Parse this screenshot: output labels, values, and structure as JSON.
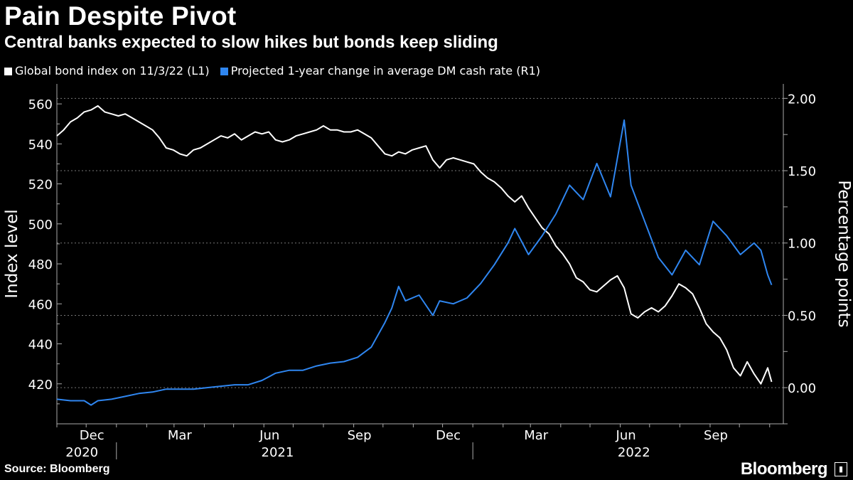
{
  "header": {
    "title": "Pain Despite Pivot",
    "subtitle": "Central banks expected to slow hikes but bonds keep sliding"
  },
  "footer": {
    "source": "Source: Bloomberg",
    "brand": "Bloomberg"
  },
  "chart_data": {
    "type": "line",
    "grid": true,
    "legend_position": "top-left",
    "series": [
      {
        "name": "Global bond index on 11/3/22 (L1)",
        "axis": "left",
        "color": "#ffffff",
        "points": [
          [
            "2020-11-01",
            544
          ],
          [
            "2020-11-08",
            547
          ],
          [
            "2020-11-15",
            551
          ],
          [
            "2020-11-22",
            553
          ],
          [
            "2020-11-29",
            556
          ],
          [
            "2020-12-06",
            557
          ],
          [
            "2020-12-13",
            559
          ],
          [
            "2020-12-20",
            556
          ],
          [
            "2020-12-27",
            555
          ],
          [
            "2021-01-03",
            554
          ],
          [
            "2021-01-10",
            555
          ],
          [
            "2021-01-17",
            553
          ],
          [
            "2021-01-24",
            551
          ],
          [
            "2021-01-31",
            549
          ],
          [
            "2021-02-07",
            547
          ],
          [
            "2021-02-14",
            543
          ],
          [
            "2021-02-21",
            538
          ],
          [
            "2021-02-28",
            537
          ],
          [
            "2021-03-07",
            535
          ],
          [
            "2021-03-14",
            534
          ],
          [
            "2021-03-21",
            537
          ],
          [
            "2021-03-28",
            538
          ],
          [
            "2021-04-04",
            540
          ],
          [
            "2021-04-11",
            542
          ],
          [
            "2021-04-18",
            544
          ],
          [
            "2021-04-25",
            543
          ],
          [
            "2021-05-02",
            545
          ],
          [
            "2021-05-09",
            542
          ],
          [
            "2021-05-16",
            544
          ],
          [
            "2021-05-23",
            546
          ],
          [
            "2021-05-30",
            545
          ],
          [
            "2021-06-06",
            546
          ],
          [
            "2021-06-13",
            542
          ],
          [
            "2021-06-20",
            541
          ],
          [
            "2021-06-27",
            542
          ],
          [
            "2021-07-04",
            544
          ],
          [
            "2021-07-11",
            545
          ],
          [
            "2021-07-18",
            546
          ],
          [
            "2021-07-25",
            547
          ],
          [
            "2021-08-01",
            549
          ],
          [
            "2021-08-08",
            547
          ],
          [
            "2021-08-15",
            547
          ],
          [
            "2021-08-22",
            546
          ],
          [
            "2021-08-29",
            546
          ],
          [
            "2021-09-05",
            547
          ],
          [
            "2021-09-12",
            545
          ],
          [
            "2021-09-19",
            543
          ],
          [
            "2021-09-26",
            539
          ],
          [
            "2021-10-03",
            535
          ],
          [
            "2021-10-10",
            534
          ],
          [
            "2021-10-17",
            536
          ],
          [
            "2021-10-24",
            535
          ],
          [
            "2021-10-31",
            537
          ],
          [
            "2021-11-07",
            538
          ],
          [
            "2021-11-14",
            539
          ],
          [
            "2021-11-21",
            532
          ],
          [
            "2021-11-28",
            528
          ],
          [
            "2021-12-05",
            532
          ],
          [
            "2021-12-12",
            533
          ],
          [
            "2021-12-19",
            532
          ],
          [
            "2021-12-26",
            531
          ],
          [
            "2022-01-02",
            530
          ],
          [
            "2022-01-09",
            526
          ],
          [
            "2022-01-16",
            523
          ],
          [
            "2022-01-23",
            521
          ],
          [
            "2022-01-30",
            518
          ],
          [
            "2022-02-06",
            514
          ],
          [
            "2022-02-13",
            511
          ],
          [
            "2022-02-20",
            514
          ],
          [
            "2022-02-27",
            508
          ],
          [
            "2022-03-06",
            503
          ],
          [
            "2022-03-13",
            498
          ],
          [
            "2022-03-20",
            495
          ],
          [
            "2022-03-27",
            489
          ],
          [
            "2022-04-03",
            485
          ],
          [
            "2022-04-10",
            480
          ],
          [
            "2022-04-17",
            473
          ],
          [
            "2022-04-24",
            471
          ],
          [
            "2022-05-01",
            467
          ],
          [
            "2022-05-08",
            466
          ],
          [
            "2022-05-15",
            469
          ],
          [
            "2022-05-22",
            472
          ],
          [
            "2022-05-29",
            474
          ],
          [
            "2022-06-05",
            468
          ],
          [
            "2022-06-12",
            455
          ],
          [
            "2022-06-19",
            453
          ],
          [
            "2022-06-26",
            456
          ],
          [
            "2022-07-03",
            458
          ],
          [
            "2022-07-10",
            456
          ],
          [
            "2022-07-17",
            459
          ],
          [
            "2022-07-24",
            464
          ],
          [
            "2022-07-31",
            470
          ],
          [
            "2022-08-07",
            468
          ],
          [
            "2022-08-14",
            465
          ],
          [
            "2022-08-21",
            458
          ],
          [
            "2022-08-28",
            450
          ],
          [
            "2022-09-04",
            446
          ],
          [
            "2022-09-11",
            443
          ],
          [
            "2022-09-18",
            437
          ],
          [
            "2022-09-25",
            428
          ],
          [
            "2022-10-02",
            424
          ],
          [
            "2022-10-09",
            431
          ],
          [
            "2022-10-16",
            425
          ],
          [
            "2022-10-23",
            420
          ],
          [
            "2022-10-30",
            428
          ],
          [
            "2022-11-03",
            421
          ]
        ]
      },
      {
        "name": "Projected 1-year change in average DM cash rate (R1)",
        "axis": "right",
        "color": "#2f86f0",
        "points": [
          [
            "2020-11-01",
            -0.08
          ],
          [
            "2020-11-15",
            -0.09
          ],
          [
            "2020-11-29",
            -0.09
          ],
          [
            "2020-12-06",
            -0.12
          ],
          [
            "2020-12-13",
            -0.09
          ],
          [
            "2020-12-27",
            -0.08
          ],
          [
            "2021-01-10",
            -0.06
          ],
          [
            "2021-01-24",
            -0.04
          ],
          [
            "2021-02-07",
            -0.03
          ],
          [
            "2021-02-21",
            -0.01
          ],
          [
            "2021-03-07",
            -0.01
          ],
          [
            "2021-03-21",
            -0.01
          ],
          [
            "2021-04-04",
            0.0
          ],
          [
            "2021-04-18",
            0.01
          ],
          [
            "2021-05-02",
            0.02
          ],
          [
            "2021-05-16",
            0.02
          ],
          [
            "2021-05-30",
            0.05
          ],
          [
            "2021-06-13",
            0.1
          ],
          [
            "2021-06-27",
            0.12
          ],
          [
            "2021-07-11",
            0.12
          ],
          [
            "2021-07-25",
            0.15
          ],
          [
            "2021-08-08",
            0.17
          ],
          [
            "2021-08-22",
            0.18
          ],
          [
            "2021-09-05",
            0.21
          ],
          [
            "2021-09-19",
            0.28
          ],
          [
            "2021-10-03",
            0.45
          ],
          [
            "2021-10-10",
            0.55
          ],
          [
            "2021-10-17",
            0.7
          ],
          [
            "2021-10-24",
            0.6
          ],
          [
            "2021-11-07",
            0.64
          ],
          [
            "2021-11-21",
            0.5
          ],
          [
            "2021-11-28",
            0.6
          ],
          [
            "2021-12-12",
            0.58
          ],
          [
            "2021-12-26",
            0.62
          ],
          [
            "2022-01-09",
            0.72
          ],
          [
            "2022-01-23",
            0.85
          ],
          [
            "2022-02-06",
            1.0
          ],
          [
            "2022-02-13",
            1.1
          ],
          [
            "2022-02-27",
            0.92
          ],
          [
            "2022-03-13",
            1.05
          ],
          [
            "2022-03-27",
            1.2
          ],
          [
            "2022-04-10",
            1.4
          ],
          [
            "2022-04-24",
            1.3
          ],
          [
            "2022-05-08",
            1.55
          ],
          [
            "2022-05-22",
            1.32
          ],
          [
            "2022-06-05",
            1.85
          ],
          [
            "2022-06-12",
            1.4
          ],
          [
            "2022-06-26",
            1.15
          ],
          [
            "2022-07-10",
            0.9
          ],
          [
            "2022-07-24",
            0.78
          ],
          [
            "2022-08-07",
            0.95
          ],
          [
            "2022-08-21",
            0.85
          ],
          [
            "2022-09-04",
            1.15
          ],
          [
            "2022-09-18",
            1.05
          ],
          [
            "2022-10-02",
            0.92
          ],
          [
            "2022-10-16",
            1.0
          ],
          [
            "2022-10-23",
            0.95
          ],
          [
            "2022-10-30",
            0.78
          ],
          [
            "2022-11-03",
            0.71
          ]
        ]
      }
    ],
    "y_left": {
      "label": "Index level",
      "lim": [
        400,
        570
      ],
      "ticks": [
        420,
        440,
        460,
        480,
        500,
        520,
        540,
        560
      ]
    },
    "y_right": {
      "label": "Percentage points",
      "lim": [
        -0.25,
        2.1
      ],
      "ticks": [
        0.0,
        0.5,
        1.0,
        1.5,
        2.0
      ],
      "tick_labels": [
        "0.00",
        "0.50",
        "1.00",
        "1.50",
        "2.00"
      ]
    },
    "x": {
      "start": "2020-11-01",
      "end": "2022-11-15",
      "month_ticks": [
        {
          "date": "2020-12-01",
          "label": "Dec"
        },
        {
          "date": "2021-03-01",
          "label": "Mar"
        },
        {
          "date": "2021-06-01",
          "label": "Jun"
        },
        {
          "date": "2021-09-01",
          "label": "Sep"
        },
        {
          "date": "2021-12-01",
          "label": "Dec"
        },
        {
          "date": "2022-03-01",
          "label": "Mar"
        },
        {
          "date": "2022-06-01",
          "label": "Jun"
        },
        {
          "date": "2022-09-01",
          "label": "Sep"
        }
      ],
      "year_labels": [
        {
          "date": "2020-12-01",
          "label": "2020"
        },
        {
          "date": "2021-06-15",
          "label": "2021"
        },
        {
          "date": "2022-06-15",
          "label": "2022"
        }
      ],
      "year_dividers": [
        "2021-01-01",
        "2022-01-01"
      ]
    }
  }
}
